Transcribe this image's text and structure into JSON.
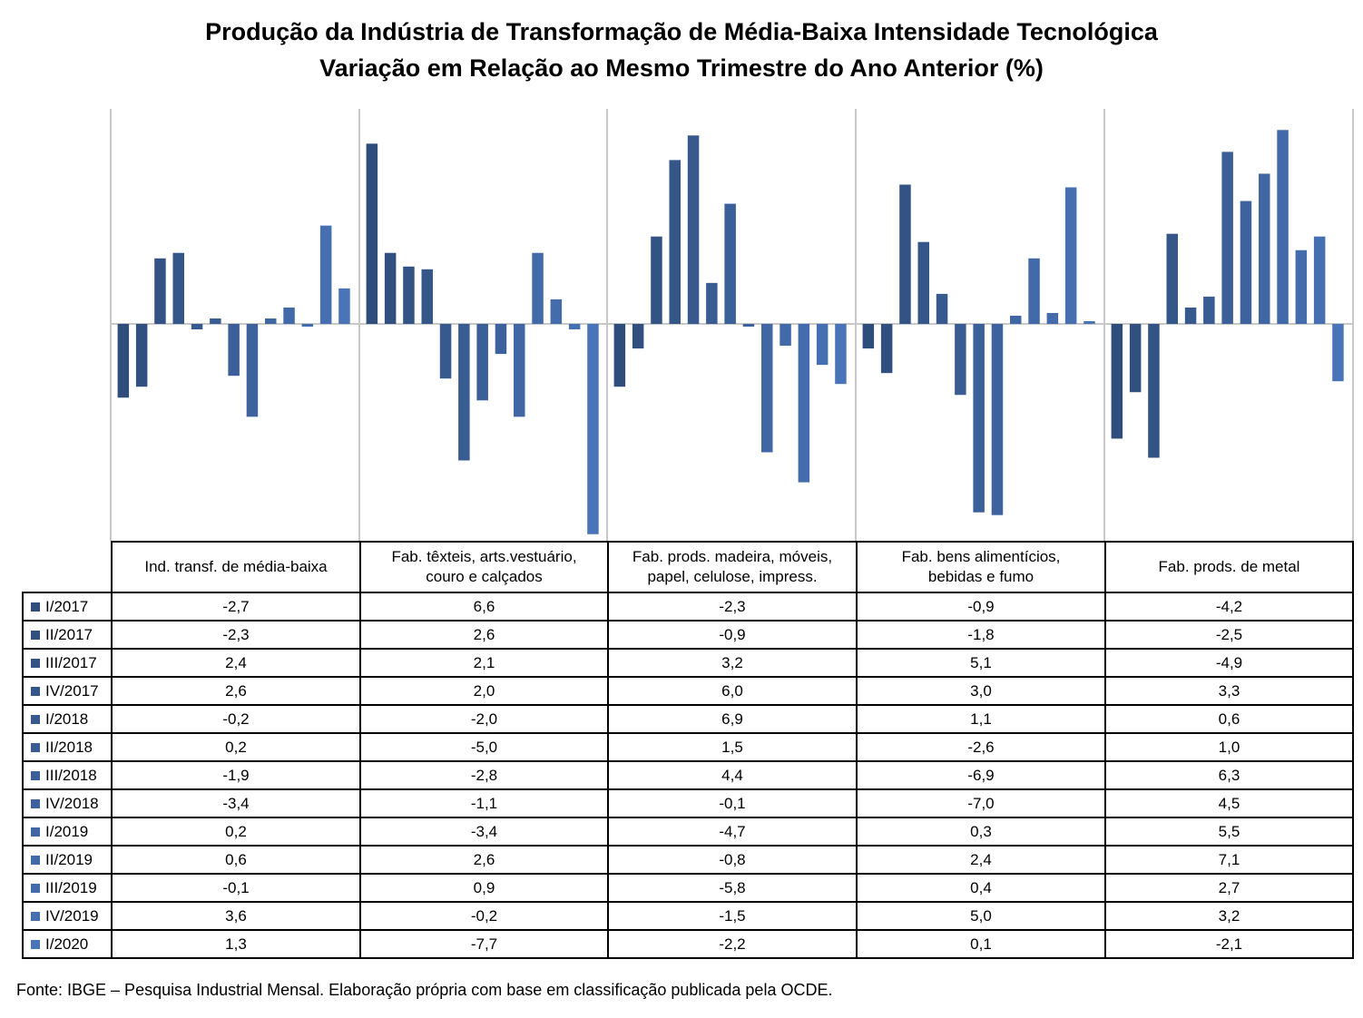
{
  "title_line1": "Produção da Indústria de Transformação de Média-Baixa Intensidade Tecnológica",
  "title_line2": "Variação em Relação ao Mesmo Trimestre do Ano Anterior (%)",
  "source": "Fonte: IBGE – Pesquisa Industrial Mensal. Elaboração própria com base em classificação publicada pela OCDE.",
  "chart_data": {
    "type": "bar",
    "title": "Produção da Indústria de Transformação de Média-Baixa Intensidade Tecnológica / Variação em Relação ao Mesmo Trimestre do Ano Anterior (%)",
    "categories": [
      "Ind. transf. de média-baixa",
      "Fab. têxteis, arts.vestuário, couro e calçados",
      "Fab. prods. madeira, móveis, papel, celulose, impress.",
      "Fab. bens alimentícios, bebidas e fumo",
      "Fab. prods. de metal"
    ],
    "category_lines": [
      [
        "Ind. transf. de média-baixa"
      ],
      [
        "Fab. têxteis, arts.vestuário,",
        "couro e calçados"
      ],
      [
        "Fab. prods. madeira, móveis,",
        "papel, celulose, impress."
      ],
      [
        "Fab. bens alimentícios,",
        "bebidas e fumo"
      ],
      [
        "Fab. prods. de metal"
      ]
    ],
    "ylim": [
      -7.7,
      7.1
    ],
    "grid": false,
    "legend_placement": "table-left",
    "series": [
      {
        "name": "I/2017",
        "color": "#2f4d7a",
        "values": [
          -2.7,
          6.6,
          -2.3,
          -0.9,
          -4.2
        ]
      },
      {
        "name": "II/2017",
        "color": "#31507f",
        "values": [
          -2.3,
          2.6,
          -0.9,
          -1.8,
          -2.5
        ]
      },
      {
        "name": "III/2017",
        "color": "#335384",
        "values": [
          2.4,
          2.1,
          3.2,
          5.1,
          -4.9
        ]
      },
      {
        "name": "IV/2017",
        "color": "#355689",
        "values": [
          2.6,
          2.0,
          6.0,
          3.0,
          3.3
        ]
      },
      {
        "name": "I/2018",
        "color": "#37598e",
        "values": [
          -0.2,
          -2.0,
          6.9,
          1.1,
          0.6
        ]
      },
      {
        "name": "II/2018",
        "color": "#395c93",
        "values": [
          0.2,
          -5.0,
          1.5,
          -2.6,
          1.0
        ]
      },
      {
        "name": "III/2018",
        "color": "#3b5f98",
        "values": [
          -1.9,
          -2.8,
          4.4,
          -6.9,
          6.3
        ]
      },
      {
        "name": "IV/2018",
        "color": "#3d629d",
        "values": [
          -3.4,
          -1.1,
          -0.1,
          -7.0,
          4.5
        ]
      },
      {
        "name": "I/2019",
        "color": "#4066a3",
        "values": [
          0.2,
          -3.4,
          -4.7,
          0.3,
          5.5
        ]
      },
      {
        "name": "II/2019",
        "color": "#4269a8",
        "values": [
          0.6,
          2.6,
          -0.8,
          2.4,
          7.1
        ]
      },
      {
        "name": "III/2019",
        "color": "#446cad",
        "values": [
          -0.1,
          0.9,
          -5.8,
          0.4,
          2.7
        ]
      },
      {
        "name": "IV/2019",
        "color": "#466fb2",
        "values": [
          3.6,
          -0.2,
          -1.5,
          5.0,
          3.2
        ]
      },
      {
        "name": "I/2020",
        "color": "#4a74b8",
        "values": [
          1.3,
          -7.7,
          -2.2,
          0.1,
          -2.1
        ]
      }
    ]
  }
}
